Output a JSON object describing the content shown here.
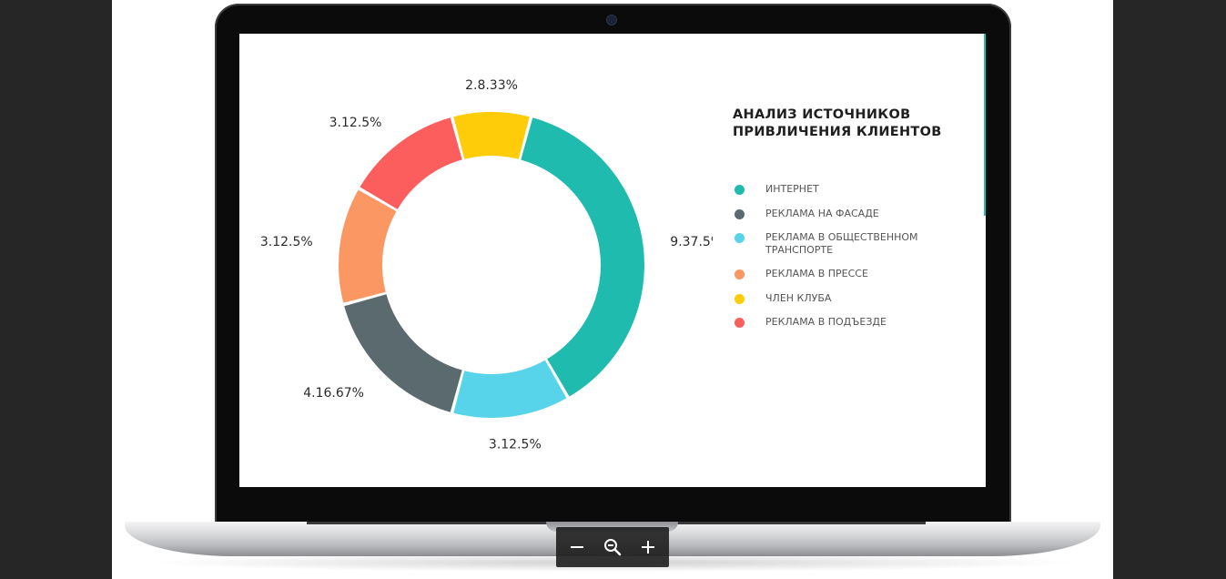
{
  "chart_data": {
    "type": "pie",
    "style": "donut",
    "title": "АНАЛИЗ ИСТОЧНИКОВ\nПРИВЛИЧЕНИЯ КЛИЕНТОВ",
    "legend_position": "right",
    "slices": [
      {
        "label": "9.37.5%",
        "value": 37.5,
        "color": "#1ebbae"
      },
      {
        "label": "3.12.5%",
        "value": 12.5,
        "color": "#58d4ea"
      },
      {
        "label": "4.16.67%",
        "value": 16.67,
        "color": "#5b6a6e"
      },
      {
        "label": "3.12.5%",
        "value": 12.5,
        "color": "#fb9762"
      },
      {
        "label": "3.12.5%",
        "value": 12.5,
        "color": "#fb5e5c"
      },
      {
        "label": "2.8.33%",
        "value": 8.33,
        "color": "#fecc08"
      }
    ],
    "legend": [
      {
        "label": "ИНТЕРНЕТ",
        "color": "#1ebbae"
      },
      {
        "label": "РЕКЛАМА НА ФАСАДЕ",
        "color": "#5b6a6e"
      },
      {
        "label": "РЕКЛАМА В ОБЩЕСТВЕННОМ ТРАНСПОРТЕ",
        "color": "#58d4ea"
      },
      {
        "label": "РЕКЛАМА В ПРЕССЕ",
        "color": "#fb9762"
      },
      {
        "label": "ЧЛЕН КЛУБА",
        "color": "#fecc08"
      },
      {
        "label": "РЕКЛАМА В ПОДЪЕЗДЕ",
        "color": "#fb5e5c"
      }
    ]
  },
  "toolbar": {
    "zoom_out_icon": "minus-icon",
    "zoom_reset_icon": "magnifier-minus-icon",
    "zoom_in_icon": "plus-icon"
  },
  "colors": {
    "page_background": "#262626",
    "toolbar_background": "#1e1e1e"
  }
}
